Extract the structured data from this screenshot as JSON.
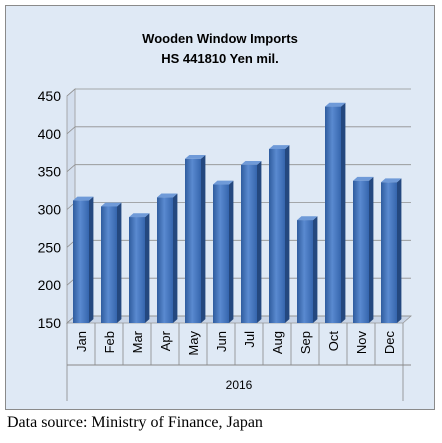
{
  "chart_data": {
    "type": "bar",
    "title": [
      "Wooden Window Imports",
      "HS 441810 Yen mil."
    ],
    "categories": [
      "Jan",
      "Feb",
      "Mar",
      "Apr",
      "May",
      "Jun",
      "Jul",
      "Aug",
      "Sep",
      "Oct",
      "Nov",
      "Dec"
    ],
    "group_label": "2016",
    "values": [
      312,
      304,
      290,
      316,
      367,
      333,
      359,
      380,
      286,
      436,
      338,
      336
    ],
    "ylim": [
      150,
      450
    ],
    "yticks": [
      "150",
      "200",
      "250",
      "300",
      "350",
      "400",
      "450"
    ],
    "ytick_values": [
      150,
      200,
      250,
      300,
      350,
      400,
      450
    ],
    "grid": true,
    "bar_color": "#4a78c0",
    "background_color": "#dfe9f5"
  },
  "footer": {
    "source": "Data source: Ministry of Finance, Japan"
  }
}
